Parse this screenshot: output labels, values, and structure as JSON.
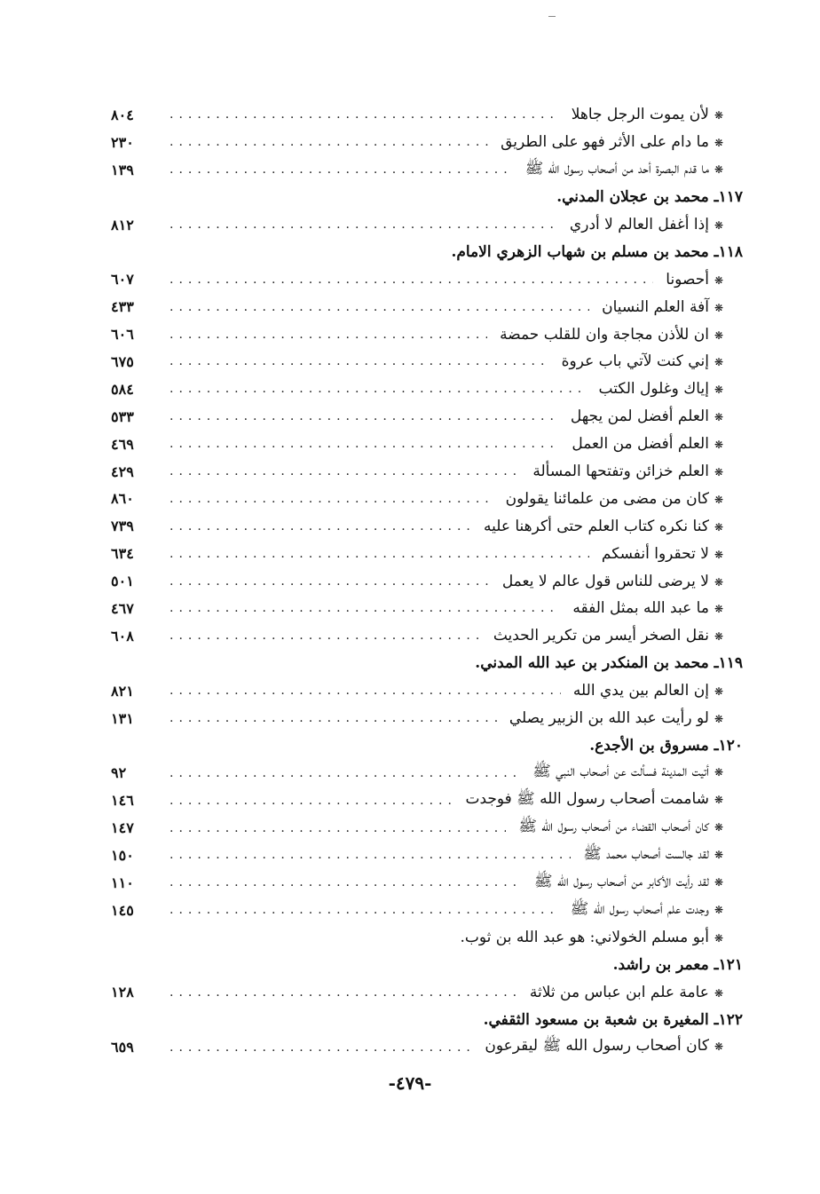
{
  "bullet": "❋",
  "rows": [
    {
      "type": "entry",
      "text": "لأن يموت الرجل جاهلا",
      "page": "٨٠٤"
    },
    {
      "type": "entry",
      "text": "ما دام على الأثر فهو على الطريق",
      "page": "٢٣٠"
    },
    {
      "type": "entry",
      "text": "ما قدم البصرة أحد من أصحاب رسول الله ﷺ",
      "page": "١٣٩"
    },
    {
      "type": "heading",
      "text": "١١٧ـ محمد بن عجلان المدني.",
      "page": ""
    },
    {
      "type": "entry",
      "text": "إذا أغفل العالم لا أدري",
      "page": "٨١٢"
    },
    {
      "type": "heading",
      "text": "١١٨ـ محمد بن مسلم بن شهاب الزهري الامام.",
      "page": ""
    },
    {
      "type": "entry",
      "text": "أحصونا",
      "page": "٦٠٧"
    },
    {
      "type": "entry",
      "text": "آفة العلم النسيان",
      "page": "٤٣٣"
    },
    {
      "type": "entry",
      "text": "ان للأذن مجاجة وان للقلب حمضة",
      "page": "٦٠٦"
    },
    {
      "type": "entry",
      "text": "إني كنت لآتي باب عروة",
      "page": "٦٧٥"
    },
    {
      "type": "entry",
      "text": "إياك وغلول الكتب",
      "page": "٥٨٤"
    },
    {
      "type": "entry",
      "text": "العلم أفضل لمن يجهل",
      "page": "٥٣٣"
    },
    {
      "type": "entry",
      "text": "العلم أفضل من العمل",
      "page": "٤٦٩"
    },
    {
      "type": "entry",
      "text": "العلم خزائن وتفتحها المسألة",
      "page": "٤٢٩"
    },
    {
      "type": "entry",
      "text": "كان من مضى من علمائنا يقولون",
      "page": "٨٦٠"
    },
    {
      "type": "entry",
      "text": "كنا نكره كتاب العلم حتى أكرهنا عليه",
      "page": "٧٣٩"
    },
    {
      "type": "entry",
      "text": "لا تحقروا أنفسكم",
      "page": "٦٣٤"
    },
    {
      "type": "entry",
      "text": "لا يرضى للناس قول عالم لا يعمل",
      "page": "٥٠١"
    },
    {
      "type": "entry",
      "text": "ما عبد الله بمثل الفقه",
      "page": "٤٦٧"
    },
    {
      "type": "entry",
      "text": "نقل الصخر أيسر من تكرير الحديث",
      "page": "٦٠٨"
    },
    {
      "type": "heading",
      "text": "١١٩ـ محمد بن المنكدر بن عبد الله المدني.",
      "page": ""
    },
    {
      "type": "entry",
      "text": "إن العالم بين يدي الله",
      "page": "٨٢١"
    },
    {
      "type": "entry",
      "text": "لو رأيت عبد الله بن الزبير يصلي",
      "page": "١٣١"
    },
    {
      "type": "heading",
      "text": "١٢٠ـ مسروق بن الأجدع.",
      "page": ""
    },
    {
      "type": "entry",
      "text": "أتيت المدينة فسألت عن أصحاب النبي ﷺ",
      "page": "٩٢"
    },
    {
      "type": "entry",
      "text": "شاممت أصحاب رسول الله ﷺ فوجدت",
      "page": "١٤٦"
    },
    {
      "type": "entry",
      "text": "كان أصحاب القضاء من أصحاب رسول الله ﷺ",
      "page": "١٤٧"
    },
    {
      "type": "entry",
      "text": "لقد جالست أصحاب محمد ﷺ",
      "page": "١٥٠"
    },
    {
      "type": "entry",
      "text": "لقد رأيت الأكابر من أصحاب رسول الله ﷺ",
      "page": "١١٠"
    },
    {
      "type": "entry",
      "text": "وجدت علم أصحاب رسول الله ﷺ",
      "page": "١٤٥"
    },
    {
      "type": "note",
      "text": "أبو مسلم الخولاني: هو عبد الله بن ثوب.",
      "page": ""
    },
    {
      "type": "heading",
      "text": "١٢١ـ معمر بن راشد.",
      "page": ""
    },
    {
      "type": "entry",
      "text": "عامة علم ابن عباس من ثلاثة",
      "page": "١٢٨"
    },
    {
      "type": "heading",
      "text": "١٢٢ـ المغيرة بن شعبة بن مسعود الثقفي.",
      "page": ""
    },
    {
      "type": "entry",
      "text": "كان أصحاب رسول الله ﷺ ليقرعون",
      "page": "٦٥٩"
    }
  ],
  "footer": {
    "page_number": "-٤٧٩-"
  }
}
